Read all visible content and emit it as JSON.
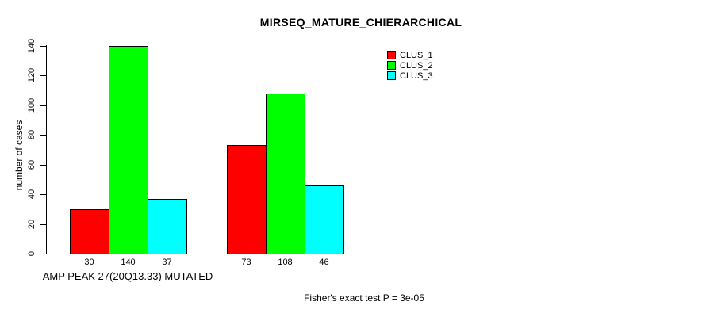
{
  "chart_data": {
    "type": "bar",
    "title": "MIRSEQ_MATURE_CHIERARCHICAL",
    "ylabel": "number of cases",
    "xlabel": "AMP PEAK 27(20Q13.33) MUTATED",
    "footnote": "Fisher's exact test P = 3e-05",
    "ylim": [
      0,
      140
    ],
    "yticks": [
      0,
      20,
      40,
      60,
      80,
      100,
      120,
      140
    ],
    "grid": false,
    "legend_position": "top-right",
    "background_color": "#ffffff",
    "series": [
      {
        "name": "CLUS_1",
        "color": "#ff0000",
        "values": [
          30,
          73
        ]
      },
      {
        "name": "CLUS_2",
        "color": "#00ff00",
        "values": [
          140,
          108
        ]
      },
      {
        "name": "CLUS_3",
        "color": "#00ffff",
        "values": [
          37,
          46
        ]
      }
    ]
  }
}
